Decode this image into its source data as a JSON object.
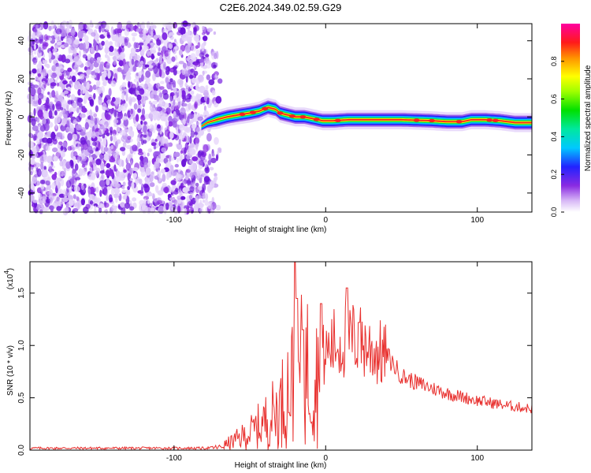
{
  "title": "C2E6.2024.349.02.59.G29",
  "colors": {
    "snr_line": "#e8302e",
    "axis": "#000000"
  },
  "chart_data": [
    {
      "type": "heatmap",
      "xlabel": "Height of straight line (km)",
      "ylabel": "Frequency (Hz)",
      "xlim": [
        -195,
        136
      ],
      "ylim": [
        -50,
        49
      ],
      "xticks": [
        -100,
        0,
        100
      ],
      "yticks": [
        -40,
        -20,
        0,
        20,
        40
      ],
      "noise_region_x": [
        -195,
        -68
      ],
      "signal_ridge": {
        "x": [
          -82,
          -78,
          -72,
          -65,
          -58,
          -50,
          -44,
          -38,
          -33,
          -30,
          -25,
          -20,
          -14,
          -8,
          -2,
          5,
          15,
          30,
          50,
          70,
          80,
          90,
          96,
          105,
          115,
          125,
          136
        ],
        "y": [
          -5,
          -3,
          -1.5,
          0,
          1,
          2,
          3,
          5,
          4,
          2,
          1,
          0,
          0,
          -1,
          -2,
          -2,
          -1.5,
          -1.5,
          -1.5,
          -2,
          -2.5,
          -2.5,
          -1.5,
          -1.5,
          -2,
          -3,
          -3
        ]
      },
      "colorbar": {
        "label": "Normalized spectral amplitude",
        "ticks": [
          "0.0",
          "0.2",
          "0.4",
          "0.6",
          "0.8"
        ],
        "range": [
          0,
          1
        ]
      }
    },
    {
      "type": "line",
      "xlabel": "Height of straight line (km)",
      "ylabel": "SNR (10 * v/v)",
      "scale_label": "(x10",
      "scale_exp": "4",
      "xlim": [
        -195,
        136
      ],
      "ylim": [
        0,
        1.8
      ],
      "xticks": [
        -100,
        0,
        100
      ],
      "yticks": [
        "0.0",
        "0.5",
        "1.0",
        "1.5"
      ],
      "envelope": {
        "x": [
          -195,
          -80,
          -70,
          -60,
          -50,
          -40,
          -30,
          -25,
          -20,
          -15,
          -10,
          -5,
          0,
          5,
          10,
          15,
          20,
          25,
          30,
          40,
          50,
          60,
          80,
          100,
          120,
          136
        ],
        "y": [
          0.02,
          0.02,
          0.03,
          0.1,
          0.18,
          0.3,
          0.45,
          0.65,
          0.75,
          0.85,
          0.85,
          0.88,
          0.95,
          1.05,
          1.05,
          1.1,
          1.1,
          1.05,
          1.0,
          0.92,
          0.72,
          0.65,
          0.55,
          0.48,
          0.43,
          0.4
        ]
      },
      "peaks": [
        {
          "x": -20,
          "y": 1.8
        },
        {
          "x": -19,
          "y": 1.45
        },
        {
          "x": -15,
          "y": 1.15
        },
        {
          "x": -3,
          "y": 1.4
        },
        {
          "x": 14,
          "y": 1.55
        },
        {
          "x": 22,
          "y": 1.22
        }
      ]
    }
  ]
}
